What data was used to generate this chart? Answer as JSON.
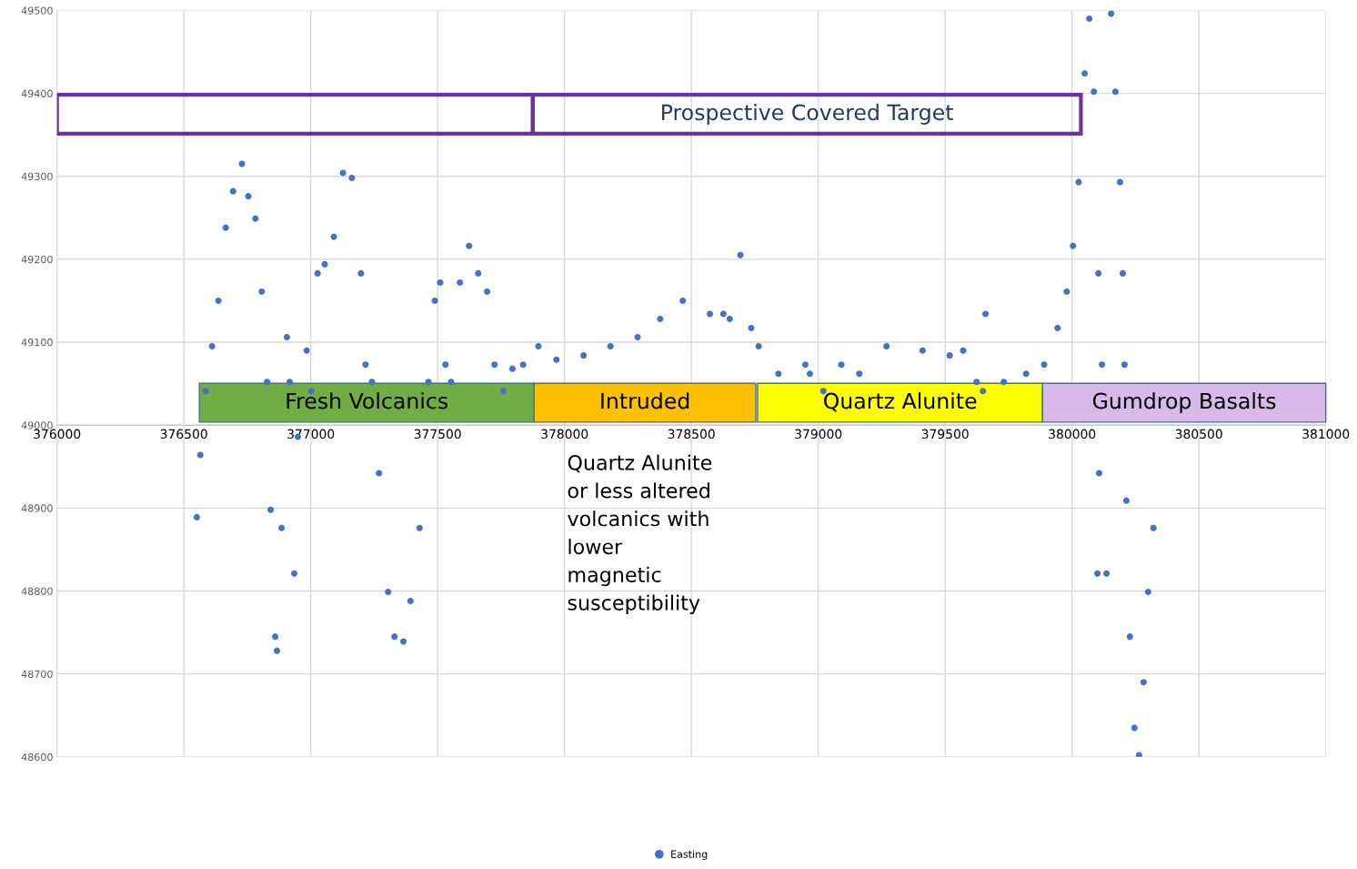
{
  "chart_data": {
    "type": "scatter",
    "xlim": [
      376000,
      381000
    ],
    "xticks": [
      376000,
      376500,
      377000,
      377500,
      378000,
      378500,
      379000,
      379500,
      380000,
      380500,
      381000
    ],
    "ylim": [
      48600,
      49500
    ],
    "yticks": [
      48600,
      48700,
      48800,
      48900,
      49000,
      49100,
      49200,
      49300,
      49400,
      49500
    ],
    "grid": true,
    "legend": "bottom",
    "marker": "circle",
    "series": [
      {
        "name": "Easting",
        "color": "#4472c4",
        "x": [
          376551,
          376565,
          376586,
          376611,
          376636,
          376665,
          376694,
          376729,
          376754,
          376782,
          376807,
          376828,
          376842,
          376860,
          376867,
          376885,
          376906,
          376917,
          376935,
          376949,
          376984,
          377002,
          377027,
          377055,
          377091,
          377127,
          377162,
          377198,
          377216,
          377241,
          377269,
          377305,
          377330,
          377365,
          377393,
          377429,
          377464,
          377489,
          377510,
          377531,
          377553,
          377588,
          377624,
          377660,
          377695,
          377724,
          377759,
          377795,
          377837,
          377897,
          377968,
          378075,
          378181,
          378288,
          378377,
          378466,
          378573,
          378626,
          378651,
          378693,
          378736,
          378765,
          378843,
          378949,
          378967,
          379020,
          379091,
          379162,
          379269,
          379411,
          379518,
          379571,
          379624,
          379649,
          379659,
          379731,
          379819,
          379890,
          379943,
          379979,
          380004,
          380026,
          380050,
          380068,
          380086,
          380104,
          380118,
          380107,
          380100,
          380136,
          380154,
          380171,
          380189,
          380200,
          380207,
          380214,
          380228,
          380246,
          380264,
          380282,
          380300,
          380321
        ],
        "values": [
          48889,
          48964,
          49041,
          49095,
          49150,
          49238,
          49282,
          49315,
          49276,
          49249,
          49161,
          49052,
          48898,
          48745,
          48728,
          48876,
          49106,
          49052,
          48821,
          48986,
          49090,
          49041,
          49183,
          49194,
          49227,
          49304,
          49298,
          49183,
          49073,
          49052,
          48942,
          48799,
          48745,
          48739,
          48788,
          48876,
          49052,
          49150,
          49172,
          49073,
          49052,
          49172,
          49216,
          49183,
          49161,
          49073,
          49041,
          49068,
          49073,
          49095,
          49079,
          49084,
          49095,
          49106,
          49128,
          49150,
          49134,
          49134,
          49128,
          49205,
          49117,
          49095,
          49062,
          49073,
          49062,
          49041,
          49073,
          49062,
          49095,
          49090,
          49084,
          49090,
          49052,
          49041,
          49134,
          49052,
          49062,
          49073,
          49117,
          49161,
          49216,
          49293,
          49424,
          49490,
          49402,
          49183,
          49073,
          48942,
          48821,
          48821,
          49496,
          49402,
          49293,
          49183,
          49073,
          48909,
          48745,
          48635,
          48602,
          48690,
          48799,
          48876
        ]
      }
    ],
    "bands": [
      {
        "axis": "x",
        "from": 376561,
        "to": 377880,
        "label": "Fresh Volcanics",
        "color": "#70ad47"
      },
      {
        "axis": "x",
        "from": 377880,
        "to": 378754,
        "label": "Intruded",
        "color": "#ffc000"
      },
      {
        "axis": "x",
        "from": 378761,
        "to": 379884,
        "label": "Quartz Alunite",
        "color": "#ffff00"
      },
      {
        "axis": "x",
        "from": 379884,
        "to": 381000,
        "label": "Gumdrop Basalts",
        "color": "#d9b8ea"
      }
    ],
    "annotations": [
      "Prospective Covered Target",
      "Quartz Alunite\nor less altered\nvolcanics with\nlower\nmagnetic\nsusceptibility"
    ]
  }
}
